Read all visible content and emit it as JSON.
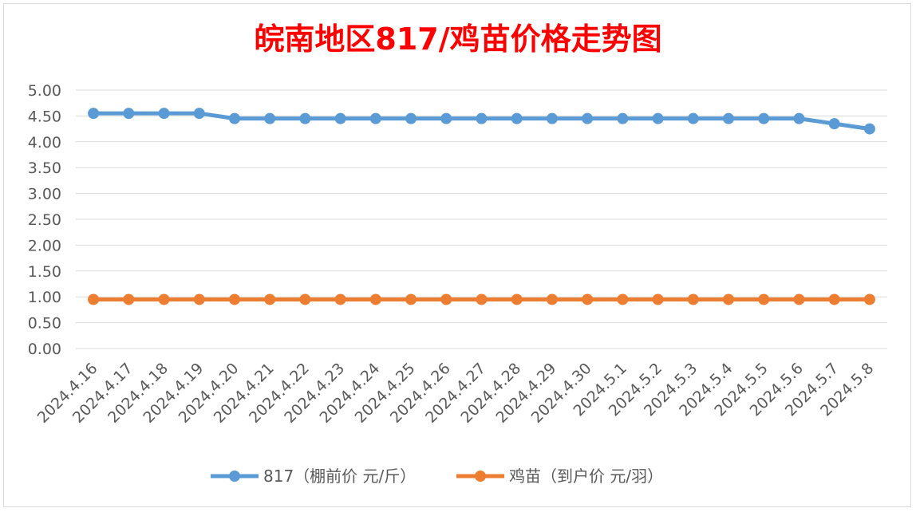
{
  "chart_data": {
    "type": "line",
    "title": "皖南地区817/鸡苗价格走势图",
    "xlabel": "",
    "ylabel": "",
    "ylim": [
      0,
      5
    ],
    "y_ticks": [
      "0.00",
      "0.50",
      "1.00",
      "1.50",
      "2.00",
      "2.50",
      "3.00",
      "3.50",
      "4.00",
      "4.50",
      "5.00"
    ],
    "grid": true,
    "legend_position": "bottom",
    "x": [
      "2024.4.16",
      "2024.4.17",
      "2024.4.18",
      "2024.4.19",
      "2024.4.20",
      "2024.4.21",
      "2024.4.22",
      "2024.4.23",
      "2024.4.24",
      "2024.4.25",
      "2024.4.26",
      "2024.4.27",
      "2024.4.28",
      "2024.4.29",
      "2024.4.30",
      "2024.5.1",
      "2024.5.2",
      "2024.5.3",
      "2024.5.4",
      "2024.5.5",
      "2024.5.6",
      "2024.5.7",
      "2024.5.8"
    ],
    "series": [
      {
        "name": "817（棚前价 元/斤）",
        "color": "#5b9bd5",
        "values": [
          4.55,
          4.55,
          4.55,
          4.55,
          4.45,
          4.45,
          4.45,
          4.45,
          4.45,
          4.45,
          4.45,
          4.45,
          4.45,
          4.45,
          4.45,
          4.45,
          4.45,
          4.45,
          4.45,
          4.45,
          4.45,
          4.35,
          4.25
        ]
      },
      {
        "name": "鸡苗（到户价 元/羽）",
        "color": "#ed7d31",
        "values": [
          0.95,
          0.95,
          0.95,
          0.95,
          0.95,
          0.95,
          0.95,
          0.95,
          0.95,
          0.95,
          0.95,
          0.95,
          0.95,
          0.95,
          0.95,
          0.95,
          0.95,
          0.95,
          0.95,
          0.95,
          0.95,
          0.95,
          0.95
        ]
      }
    ]
  }
}
